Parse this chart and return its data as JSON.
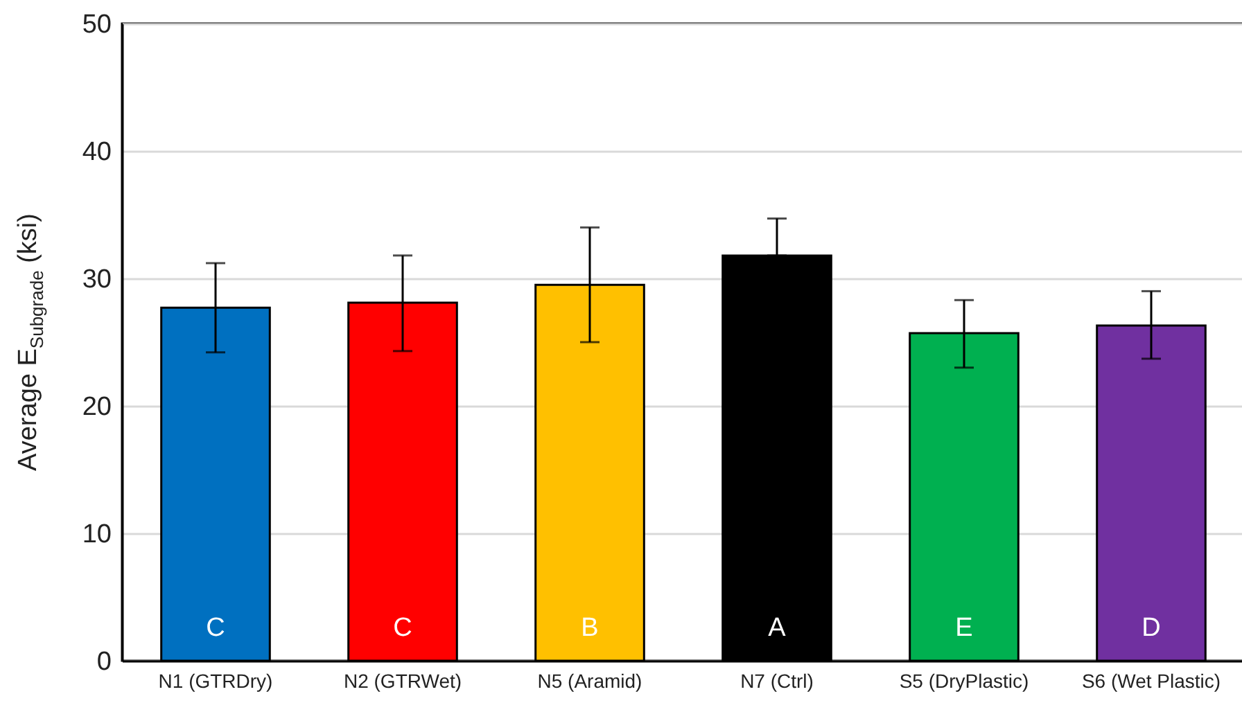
{
  "chart_data": {
    "type": "bar",
    "ylabel": "Average E$_{Subgrade}$ (ksi)",
    "categories": [
      "N1 (GTRDry)",
      "N2 (GTRWet)",
      "N5 (Aramid)",
      "N7 (Ctrl)",
      "S5 (DryPlastic)",
      "S6 (Wet Plastic)"
    ],
    "values": [
      27.7,
      28.1,
      29.5,
      31.8,
      25.7,
      26.3
    ],
    "colors": [
      "#0070c0",
      "#ff0000",
      "#ffc000",
      "#000000",
      "#00b050",
      "#7030a0"
    ],
    "errors": [
      [
        24.2,
        31.2
      ],
      [
        24.3,
        31.8
      ],
      [
        25.0,
        34.0
      ],
      [
        31.8,
        34.7
      ],
      [
        23.0,
        28.3
      ],
      [
        23.7,
        29.0
      ]
    ],
    "annotations": [
      "C",
      "C",
      "B",
      "A",
      "E",
      "D"
    ],
    "ylim": [
      0,
      50
    ],
    "yticks": [
      0,
      10,
      20,
      30,
      40,
      50
    ],
    "grid": "y"
  }
}
